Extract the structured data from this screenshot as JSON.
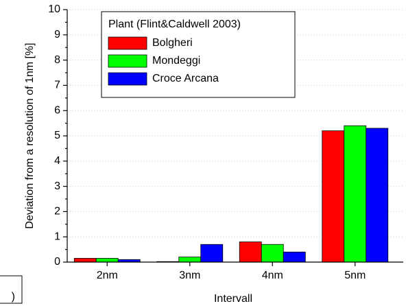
{
  "chart_data": {
    "type": "bar",
    "xlabel": "Intervall",
    "ylabel": "Deviation from a resolution of 1nm [%]",
    "legend_title": "Plant (Flint&Caldwell 2003)",
    "annotation": ")",
    "categories": [
      "2nm",
      "3nm",
      "4nm",
      "5nm"
    ],
    "series": [
      {
        "name": "Bolgheri",
        "color": "#ff0000",
        "values": [
          0.15,
          0.02,
          0.8,
          5.2
        ]
      },
      {
        "name": "Mondeggi",
        "color": "#00ff00",
        "values": [
          0.15,
          0.2,
          0.7,
          5.4
        ]
      },
      {
        "name": "Croce Arcana",
        "color": "#0000ff",
        "values": [
          0.1,
          0.7,
          0.4,
          5.3
        ]
      }
    ],
    "ylim": [
      0,
      10
    ],
    "yticks": [
      0,
      1,
      2,
      3,
      4,
      5,
      6,
      7,
      8,
      9,
      10
    ],
    "grid": true
  }
}
